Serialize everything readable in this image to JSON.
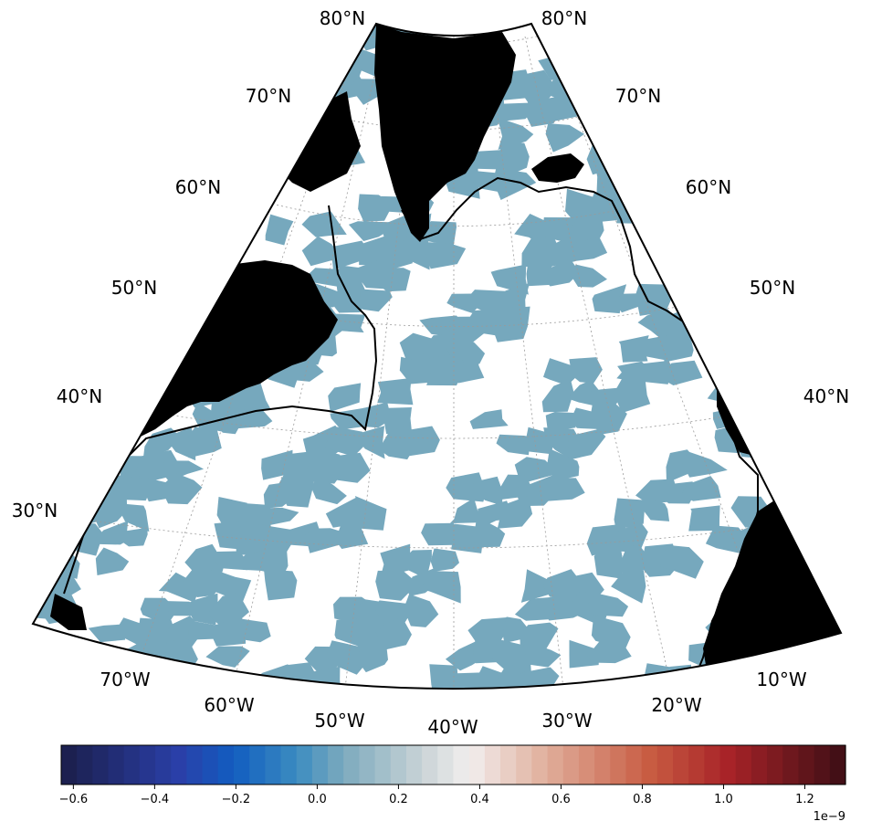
{
  "map": {
    "projection": "conic",
    "region": "North Atlantic",
    "land_color": "#000000",
    "field_color": "#76a8bd",
    "coastline_color": "#000000",
    "lat_labels_left": [
      "80°N",
      "70°N",
      "60°N",
      "50°N",
      "40°N",
      "30°N"
    ],
    "lat_labels_right": [
      "80°N",
      "70°N",
      "60°N",
      "50°N",
      "40°N"
    ],
    "lon_labels": [
      "70°W",
      "60°W",
      "50°W",
      "40°W",
      "30°W",
      "20°W",
      "10°W"
    ]
  },
  "colorbar": {
    "colormap": "diverging dark blue - white - dark red (balance)",
    "vmin": -0.63,
    "vmax": 1.3,
    "levels": 50,
    "ticks": [
      "−0.6",
      "−0.4",
      "−0.2",
      "0.0",
      "0.2",
      "0.4",
      "0.6",
      "0.8",
      "1.0",
      "1.2"
    ],
    "tick_values": [
      -0.6,
      -0.4,
      -0.2,
      0.0,
      0.2,
      0.4,
      0.6,
      0.8,
      1.0,
      1.2
    ],
    "multiplier": "1e−9"
  }
}
